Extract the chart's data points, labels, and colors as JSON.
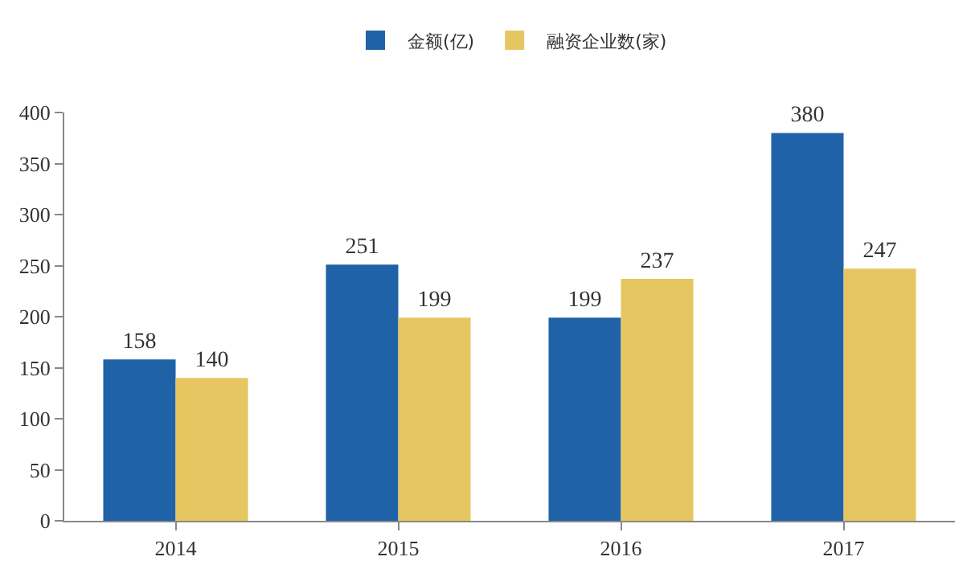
{
  "chart_data": {
    "type": "bar",
    "categories": [
      "2014",
      "2015",
      "2016",
      "2017"
    ],
    "series": [
      {
        "name": "金额(亿)",
        "color": "#1f62a8",
        "values": [
          158,
          251,
          199,
          380
        ]
      },
      {
        "name": "融资企业数(家)",
        "color": "#e6c660",
        "values": [
          140,
          199,
          237,
          247
        ]
      }
    ],
    "ylim": [
      0,
      400
    ],
    "yticks": [
      0,
      50,
      100,
      150,
      200,
      250,
      300,
      350,
      400
    ],
    "grid": false,
    "legend": "top",
    "data_labels": true
  }
}
